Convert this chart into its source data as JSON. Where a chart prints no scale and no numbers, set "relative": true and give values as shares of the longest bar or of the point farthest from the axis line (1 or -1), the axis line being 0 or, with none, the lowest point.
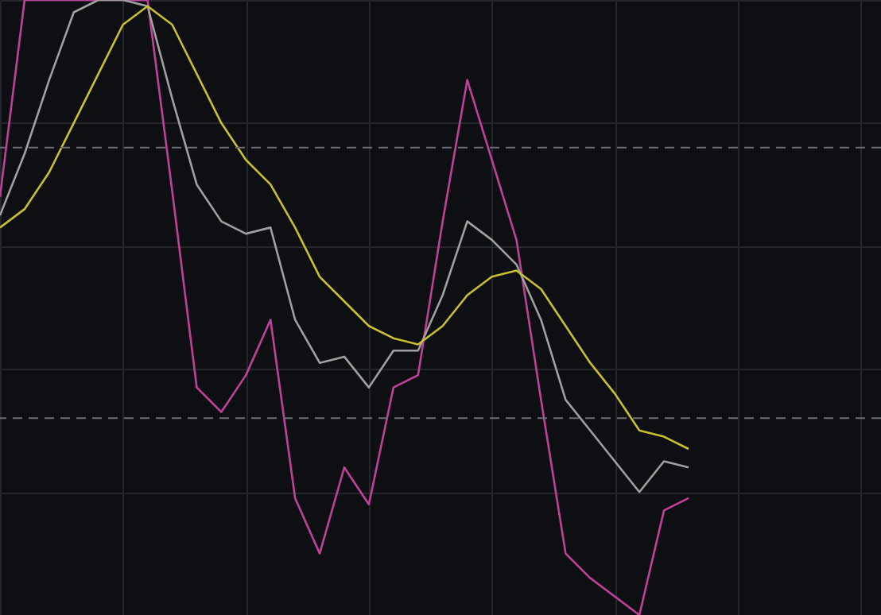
{
  "chart_data": {
    "type": "line",
    "relative": true,
    "grid": true,
    "marker": "none",
    "line_style": "solid",
    "categories": [
      null,
      null,
      null,
      null,
      null,
      null,
      null,
      null,
      null,
      null,
      null,
      null,
      null,
      null,
      null,
      null,
      null,
      null,
      null,
      null,
      null,
      null,
      null,
      null,
      null,
      null,
      null,
      null,
      null
    ],
    "series": [
      {
        "color": "#c0409a",
        "values": [
          0.68,
          1,
          1,
          1,
          1,
          1,
          1,
          0.69,
          0.37,
          0.33,
          0.39,
          0.48,
          0.19,
          0.1,
          0.24,
          0.18,
          0.37,
          0.39,
          0.64,
          0.87,
          0.74,
          0.61,
          0.35,
          0.1,
          0.06,
          0.03,
          0,
          0.17,
          0.19
        ]
      },
      {
        "color": "#a0a0a0",
        "values": [
          0.65,
          0.75,
          0.87,
          0.98,
          1,
          1,
          0.99,
          0.84,
          0.7,
          0.64,
          0.62,
          0.63,
          0.48,
          0.41,
          0.42,
          0.37,
          0.43,
          0.43,
          0.52,
          0.64,
          0.61,
          0.57,
          0.48,
          0.35,
          0.3,
          0.25,
          0.2,
          0.25,
          0.24
        ]
      },
      {
        "color": "#c8c030",
        "values": [
          0.63,
          0.66,
          0.72,
          0.8,
          0.88,
          0.96,
          0.99,
          0.96,
          0.88,
          0.8,
          0.74,
          0.7,
          0.63,
          0.55,
          0.51,
          0.47,
          0.45,
          0.44,
          0.47,
          0.52,
          0.55,
          0.56,
          0.53,
          0.47,
          0.41,
          0.36,
          0.3,
          0.29,
          0.27
        ]
      }
    ],
    "ref_lines": [
      {
        "axis": "y",
        "value": 0.76,
        "color": "#6a6e74",
        "line_style": "dashed"
      },
      {
        "axis": "y",
        "value": 0.32,
        "color": "#6a6e74",
        "line_style": "dashed"
      }
    ]
  }
}
